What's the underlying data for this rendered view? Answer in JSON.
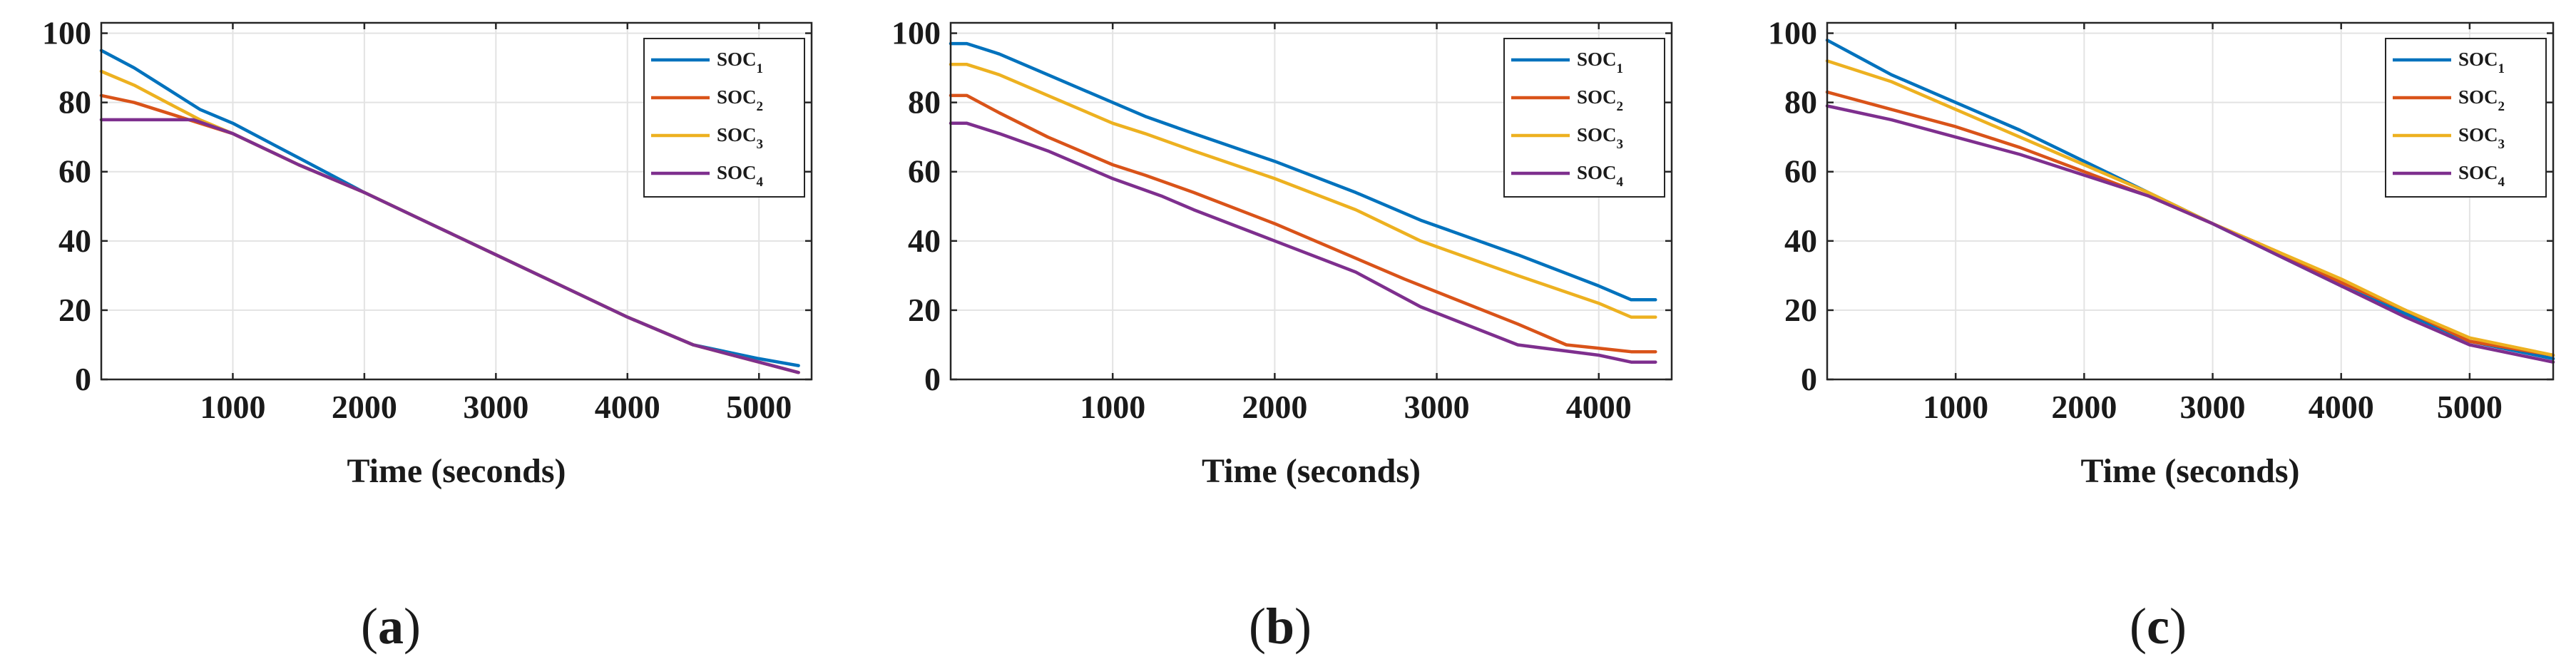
{
  "chart_data": [
    {
      "type": "line",
      "panel_label": "a",
      "xlabel": "Time (seconds)",
      "ylabel": "",
      "xlim": [
        0,
        5400
      ],
      "ylim": [
        0,
        103
      ],
      "xticks": [
        1000,
        2000,
        3000,
        4000,
        5000
      ],
      "yticks": [
        0,
        20,
        40,
        60,
        80,
        100
      ],
      "grid": true,
      "legend_position": "top-right",
      "series": [
        {
          "name": "SOC",
          "subscript": "1",
          "color": "#0072BD",
          "x": [
            0,
            250,
            500,
            750,
            1000,
            1500,
            2000,
            2500,
            3000,
            3500,
            4000,
            4500,
            5000,
            5300
          ],
          "y": [
            95,
            90,
            84,
            78,
            74,
            64,
            54,
            45,
            36,
            27,
            18,
            10,
            6,
            4
          ]
        },
        {
          "name": "SOC",
          "subscript": "2",
          "color": "#D95319",
          "x": [
            0,
            250,
            500,
            750,
            1000,
            1500,
            2000,
            2500,
            3000,
            3500,
            4000,
            4500,
            5000,
            5200,
            5300
          ],
          "y": [
            82,
            80,
            77,
            74,
            71,
            62,
            54,
            45,
            36,
            27,
            18,
            10,
            5,
            3,
            2
          ]
        },
        {
          "name": "SOC",
          "subscript": "3",
          "color": "#EDB120",
          "x": [
            0,
            250,
            500,
            750,
            1000,
            1500,
            2000,
            2500,
            3000,
            3500,
            4000,
            4500,
            5000,
            5200,
            5300
          ],
          "y": [
            89,
            85,
            80,
            75,
            71,
            62,
            54,
            45,
            36,
            27,
            18,
            10,
            5,
            3,
            2
          ]
        },
        {
          "name": "SOC",
          "subscript": "4",
          "color": "#7E2F8E",
          "x": [
            0,
            300,
            600,
            700,
            1000,
            1500,
            2000,
            2500,
            3000,
            3500,
            4000,
            4500,
            5000,
            5200,
            5300
          ],
          "y": [
            75,
            75,
            75,
            75,
            71,
            62,
            54,
            45,
            36,
            27,
            18,
            10,
            5,
            3,
            2
          ]
        }
      ]
    },
    {
      "type": "line",
      "panel_label": "b",
      "xlabel": "Time (seconds)",
      "ylabel": "",
      "xlim": [
        0,
        4450
      ],
      "ylim": [
        0,
        103
      ],
      "xticks": [
        1000,
        2000,
        3000,
        4000
      ],
      "yticks": [
        0,
        20,
        40,
        60,
        80,
        100
      ],
      "grid": true,
      "legend_position": "top-right",
      "series": [
        {
          "name": "SOC",
          "subscript": "1",
          "color": "#0072BD",
          "x": [
            0,
            100,
            300,
            600,
            1000,
            1200,
            1500,
            2000,
            2500,
            2900,
            3500,
            4000,
            4200,
            4350
          ],
          "y": [
            97,
            97,
            94,
            88,
            80,
            76,
            71,
            63,
            54,
            46,
            36,
            27,
            23,
            23
          ]
        },
        {
          "name": "SOC",
          "subscript": "2",
          "color": "#D95319",
          "x": [
            0,
            100,
            300,
            600,
            1000,
            1200,
            1500,
            2000,
            2500,
            2800,
            3500,
            3800,
            4000,
            4200,
            4350
          ],
          "y": [
            82,
            82,
            77,
            70,
            62,
            59,
            54,
            45,
            35,
            29,
            16,
            10,
            9,
            8,
            8
          ]
        },
        {
          "name": "SOC",
          "subscript": "3",
          "color": "#EDB120",
          "x": [
            0,
            100,
            300,
            600,
            1000,
            1200,
            1500,
            2000,
            2500,
            2900,
            3500,
            4000,
            4200,
            4350
          ],
          "y": [
            91,
            91,
            88,
            82,
            74,
            71,
            66,
            58,
            49,
            40,
            30,
            22,
            18,
            18
          ]
        },
        {
          "name": "SOC",
          "subscript": "4",
          "color": "#7E2F8E",
          "x": [
            0,
            100,
            300,
            600,
            1000,
            1300,
            1500,
            2000,
            2500,
            2900,
            3500,
            4000,
            4200,
            4350
          ],
          "y": [
            74,
            74,
            71,
            66,
            58,
            53,
            49,
            40,
            31,
            21,
            10,
            7,
            5,
            5
          ]
        }
      ]
    },
    {
      "type": "line",
      "panel_label": "c",
      "xlabel": "Time (seconds)",
      "ylabel": "",
      "xlim": [
        0,
        5650
      ],
      "ylim": [
        0,
        103
      ],
      "xticks": [
        1000,
        2000,
        3000,
        4000,
        5000
      ],
      "yticks": [
        0,
        20,
        40,
        60,
        80,
        100
      ],
      "grid": true,
      "legend_position": "top-right",
      "series": [
        {
          "name": "SOC",
          "subscript": "1",
          "color": "#0072BD",
          "x": [
            0,
            250,
            500,
            1000,
            1500,
            2000,
            2500,
            3000,
            3500,
            4000,
            4500,
            5000,
            5650
          ],
          "y": [
            98,
            93,
            88,
            80,
            72,
            63,
            54,
            45,
            36,
            27,
            19,
            11,
            6
          ]
        },
        {
          "name": "SOC",
          "subscript": "2",
          "color": "#D95319",
          "x": [
            0,
            500,
            1000,
            1500,
            2000,
            2500,
            3000,
            3500,
            4000,
            4500,
            5000,
            5650
          ],
          "y": [
            83,
            78,
            73,
            67,
            60,
            53,
            45,
            37,
            28,
            20,
            11,
            7
          ]
        },
        {
          "name": "SOC",
          "subscript": "3",
          "color": "#EDB120",
          "x": [
            0,
            500,
            1000,
            1500,
            2000,
            2500,
            3000,
            3500,
            4000,
            4500,
            5000,
            5650
          ],
          "y": [
            92,
            86,
            78,
            70,
            62,
            54,
            45,
            37,
            29,
            20,
            12,
            7
          ]
        },
        {
          "name": "SOC",
          "subscript": "4",
          "color": "#7E2F8E",
          "x": [
            0,
            500,
            1000,
            1500,
            2000,
            2500,
            3000,
            3500,
            4000,
            4500,
            5000,
            5650
          ],
          "y": [
            79,
            75,
            70,
            65,
            59,
            53,
            45,
            36,
            27,
            18,
            10,
            5
          ]
        }
      ]
    }
  ]
}
